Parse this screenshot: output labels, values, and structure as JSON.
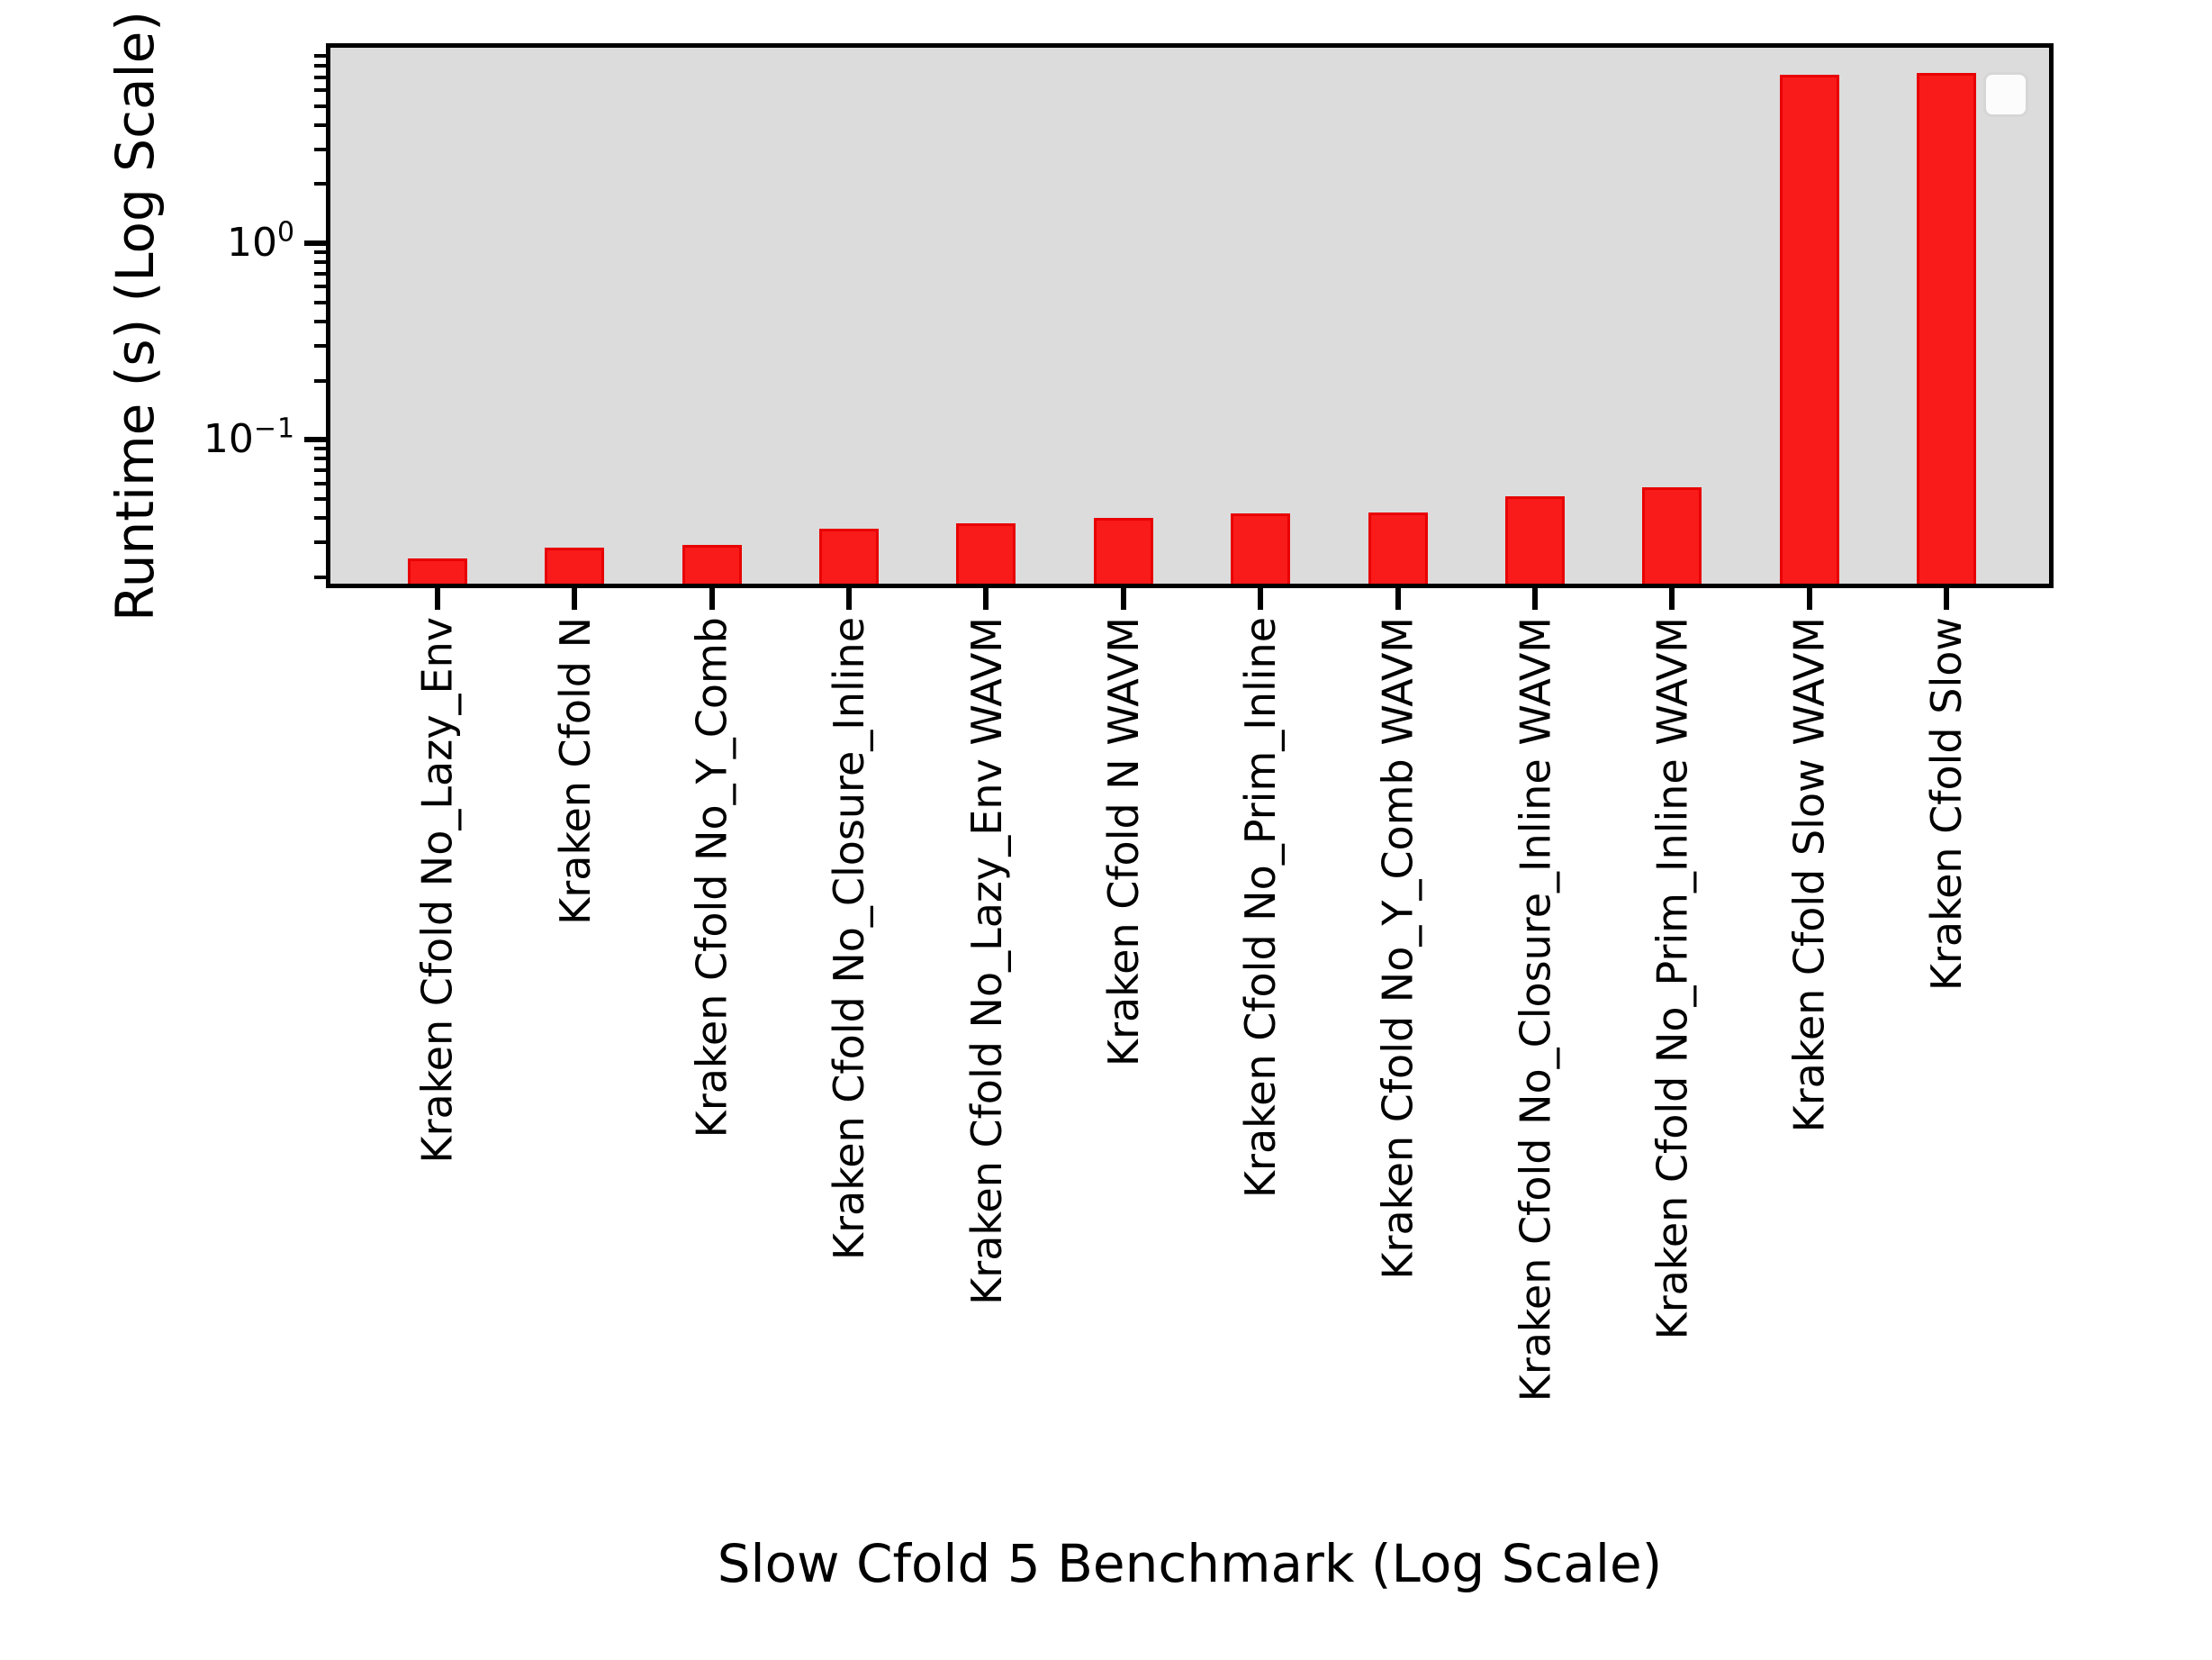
{
  "figure": {
    "background": "#ffffff",
    "plot_background": "#dcdcdc",
    "spine_color": "#000000"
  },
  "chart_data": {
    "type": "bar",
    "title": "",
    "xlabel": "Slow Cfold 5 Benchmark (Log Scale)",
    "ylabel": "Runtime (s) (Log Scale)",
    "yscale": "log",
    "ylim": [
      0.0185,
      9.9
    ],
    "grid": false,
    "legend_position": "upper-right",
    "legend_entries": [],
    "categories": [
      "Kraken Cfold No_Lazy_Env",
      "Kraken Cfold N",
      "Kraken Cfold No_Y_Comb",
      "Kraken Cfold No_Closure_Inline",
      "Kraken Cfold No_Lazy_Env WAVM",
      "Kraken Cfold N WAVM",
      "Kraken Cfold No_Prim_Inline",
      "Kraken Cfold No_Y_Comb WAVM",
      "Kraken Cfold No_Closure_Inline WAVM",
      "Kraken Cfold No_Prim_Inline WAVM",
      "Kraken Cfold Slow WAVM",
      "Kraken Cfold Slow"
    ],
    "values": [
      0.0248,
      0.0282,
      0.0291,
      0.0352,
      0.0375,
      0.04,
      0.0422,
      0.0426,
      0.0515,
      0.0572,
      7.2,
      7.4
    ],
    "bar_color": "#f91a1a",
    "bar_edge_color": "#e80202",
    "y_major_ticks": [
      {
        "value": 1,
        "base": "10",
        "exp": "0"
      },
      {
        "value": 0.1,
        "base": "10",
        "exp": "−1"
      }
    ]
  }
}
